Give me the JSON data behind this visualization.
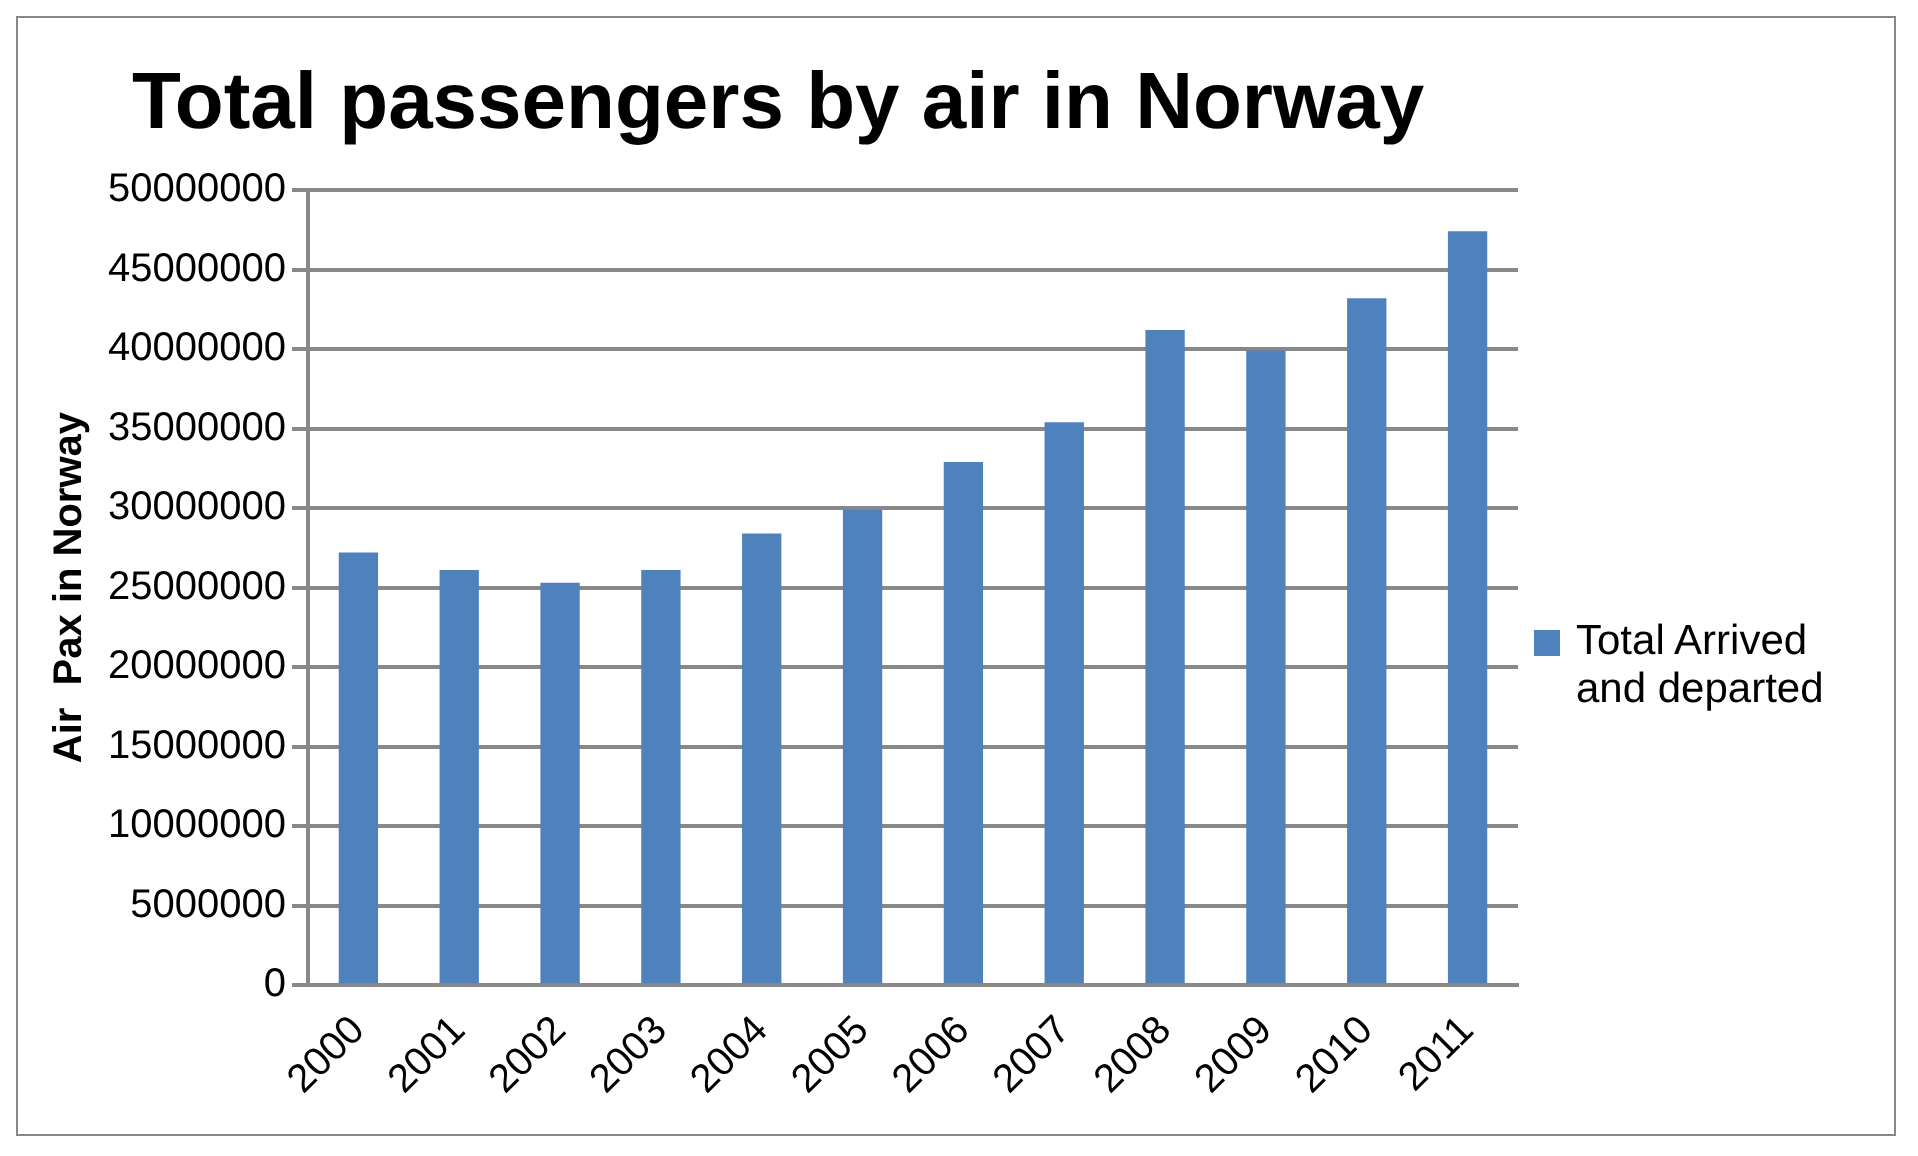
{
  "chart_data": {
    "type": "bar",
    "title": "Total passengers by air in Norway",
    "ylabel": "Air  Pax in Norway",
    "categories": [
      "2000",
      "2001",
      "2002",
      "2003",
      "2004",
      "2005",
      "2006",
      "2007",
      "2008",
      "2009",
      "2010",
      "2011"
    ],
    "series": [
      {
        "name": "Total Arrived and departed",
        "color": "#4f81bd",
        "values": [
          27200000,
          26100000,
          25300000,
          26100000,
          28400000,
          29900000,
          32900000,
          35400000,
          41200000,
          39900000,
          43200000,
          47400000
        ]
      }
    ],
    "ylim": [
      0,
      50000000
    ],
    "yticks": [
      0,
      5000000,
      10000000,
      15000000,
      20000000,
      25000000,
      30000000,
      35000000,
      40000000,
      45000000,
      50000000
    ],
    "grid": "y",
    "legend": "right"
  }
}
